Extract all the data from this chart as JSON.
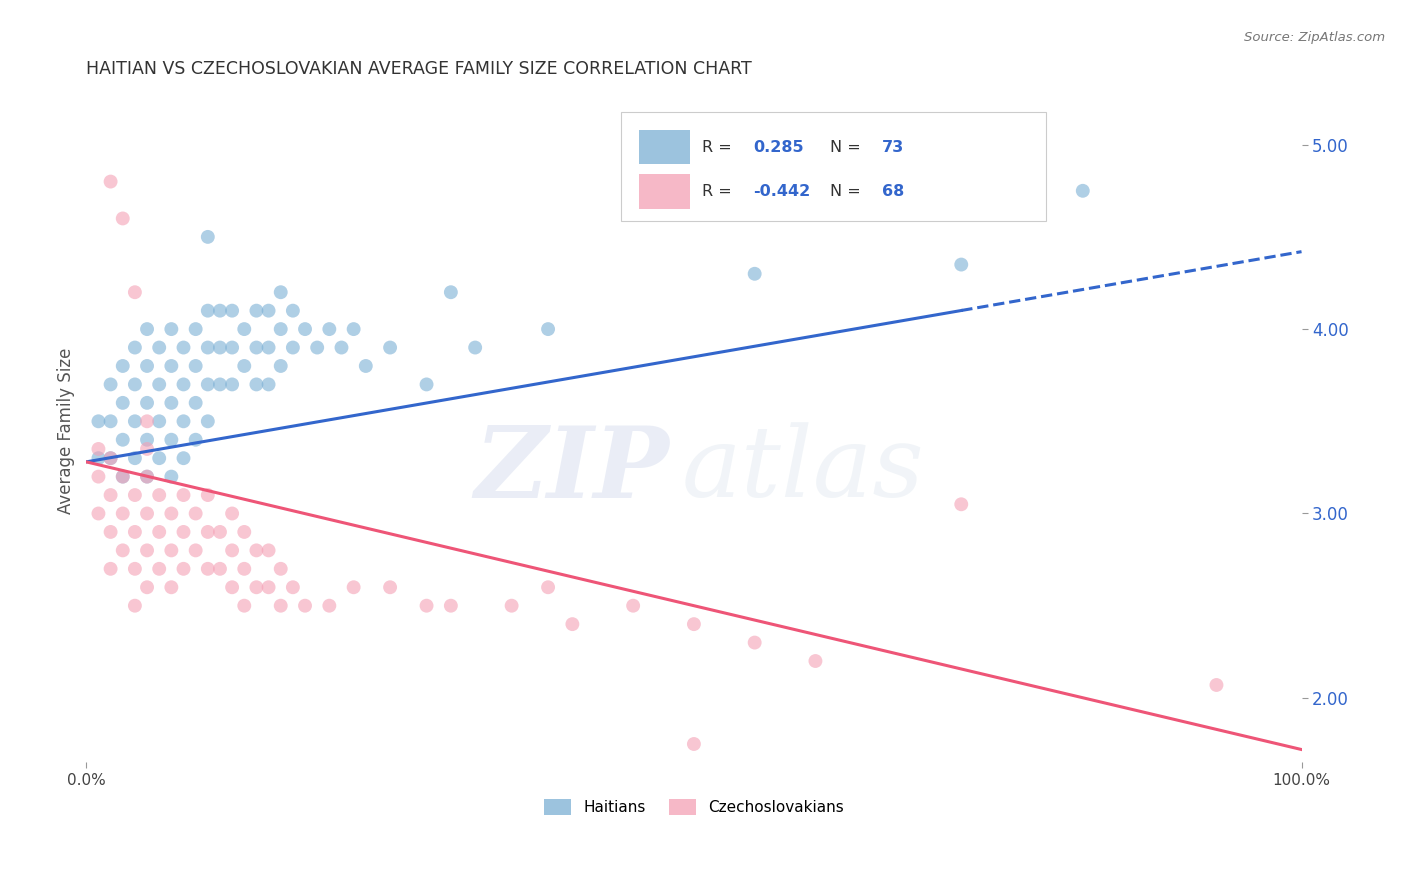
{
  "title": "HAITIAN VS CZECHOSLOVAKIAN AVERAGE FAMILY SIZE CORRELATION CHART",
  "source": "Source: ZipAtlas.com",
  "ylabel": "Average Family Size",
  "yticks_right": [
    2.0,
    3.0,
    4.0,
    5.0
  ],
  "haitian": {
    "R": 0.285,
    "N": 73,
    "color": "#7BAFD4",
    "label": "Haitians",
    "trend_y_start": 3.28,
    "trend_y_end": 4.42,
    "dash_start": 72
  },
  "czechoslovakian": {
    "R": -0.442,
    "N": 68,
    "color": "#F4A0B5",
    "label": "Czechoslovakians",
    "trend_y_start": 3.28,
    "trend_y_end": 1.72
  },
  "xlim": [
    0,
    100
  ],
  "ylim": [
    1.65,
    5.25
  ],
  "background_color": "#FFFFFF",
  "grid_color": "#CCCCCC",
  "legend_R_color": "#3366CC",
  "legend_N_color": "#3366CC",
  "haitian_x": [
    1,
    1,
    2,
    2,
    2,
    3,
    3,
    3,
    3,
    4,
    4,
    4,
    4,
    5,
    5,
    5,
    5,
    5,
    6,
    6,
    6,
    6,
    7,
    7,
    7,
    7,
    7,
    8,
    8,
    8,
    8,
    9,
    9,
    9,
    9,
    10,
    10,
    10,
    10,
    11,
    11,
    11,
    12,
    12,
    12,
    13,
    13,
    14,
    14,
    14,
    15,
    15,
    15,
    16,
    16,
    16,
    17,
    17,
    18,
    19,
    20,
    21,
    22,
    23,
    25,
    28,
    30,
    32,
    38,
    55,
    72,
    82,
    10
  ],
  "haitian_y": [
    3.5,
    3.3,
    3.7,
    3.5,
    3.3,
    3.8,
    3.6,
    3.4,
    3.2,
    3.9,
    3.7,
    3.5,
    3.3,
    4.0,
    3.8,
    3.6,
    3.4,
    3.2,
    3.9,
    3.7,
    3.5,
    3.3,
    4.0,
    3.8,
    3.6,
    3.4,
    3.2,
    3.9,
    3.7,
    3.5,
    3.3,
    4.0,
    3.8,
    3.6,
    3.4,
    4.1,
    3.9,
    3.7,
    3.5,
    4.1,
    3.9,
    3.7,
    4.1,
    3.9,
    3.7,
    4.0,
    3.8,
    4.1,
    3.9,
    3.7,
    4.1,
    3.9,
    3.7,
    4.2,
    4.0,
    3.8,
    4.1,
    3.9,
    4.0,
    3.9,
    4.0,
    3.9,
    4.0,
    3.8,
    3.9,
    3.7,
    4.2,
    3.9,
    4.0,
    4.3,
    4.35,
    4.75,
    4.5
  ],
  "czechoslovakian_x": [
    1,
    1,
    1,
    2,
    2,
    2,
    2,
    3,
    3,
    3,
    4,
    4,
    4,
    4,
    5,
    5,
    5,
    5,
    5,
    6,
    6,
    6,
    7,
    7,
    7,
    8,
    8,
    8,
    9,
    9,
    10,
    10,
    10,
    11,
    11,
    12,
    12,
    12,
    13,
    13,
    13,
    14,
    14,
    15,
    15,
    16,
    16,
    17,
    18,
    20,
    22,
    25,
    28,
    30,
    35,
    38,
    40,
    45,
    50,
    55,
    60,
    50,
    72,
    2,
    3,
    4,
    5,
    93
  ],
  "czechoslovakian_y": [
    3.35,
    3.2,
    3.0,
    3.3,
    3.1,
    2.9,
    2.7,
    3.2,
    3.0,
    2.8,
    3.1,
    2.9,
    2.7,
    2.5,
    3.2,
    3.0,
    2.8,
    2.6,
    3.35,
    3.1,
    2.9,
    2.7,
    3.0,
    2.8,
    2.6,
    3.1,
    2.9,
    2.7,
    3.0,
    2.8,
    3.1,
    2.9,
    2.7,
    2.9,
    2.7,
    3.0,
    2.8,
    2.6,
    2.9,
    2.7,
    2.5,
    2.8,
    2.6,
    2.8,
    2.6,
    2.7,
    2.5,
    2.6,
    2.5,
    2.5,
    2.6,
    2.6,
    2.5,
    2.5,
    2.5,
    2.6,
    2.4,
    2.5,
    2.4,
    2.3,
    2.2,
    1.75,
    3.05,
    4.8,
    4.6,
    4.2,
    3.5,
    2.07
  ]
}
